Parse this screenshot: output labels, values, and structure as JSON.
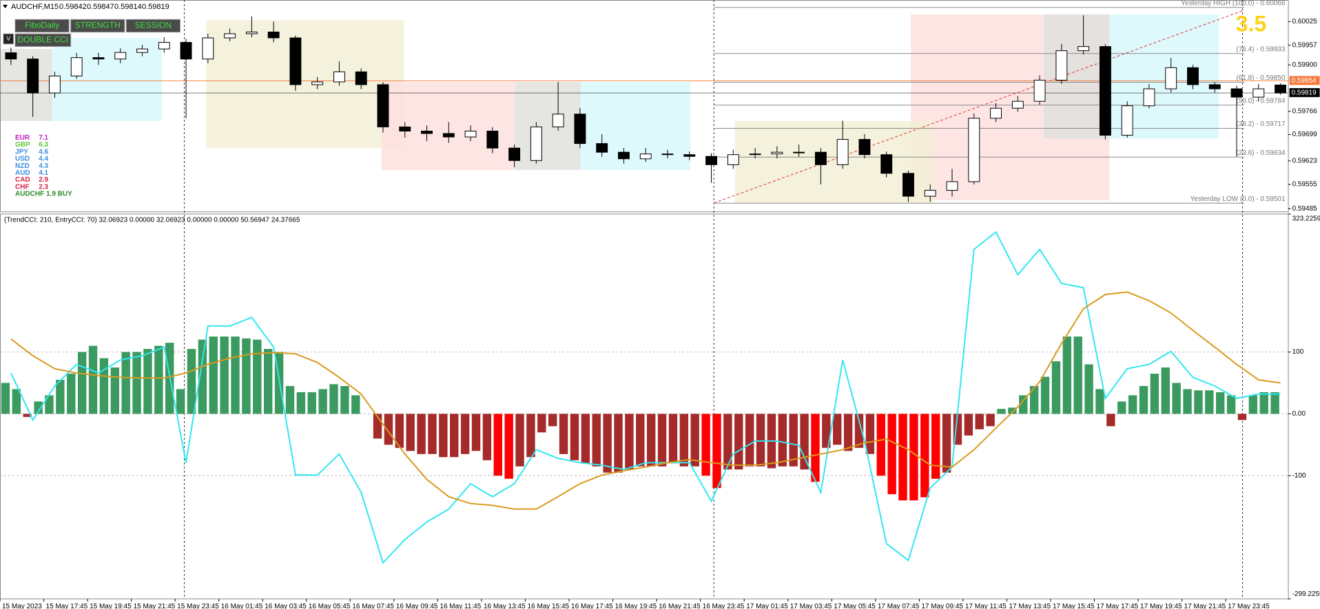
{
  "chart_data": [
    {
      "type": "candlestick",
      "title": "AUDCHF,M15",
      "open": [
        0.59935,
        0.59917,
        0.59819,
        0.59868,
        0.59921,
        0.59917,
        0.59936,
        0.59946,
        0.59965,
        0.59917,
        0.59978,
        0.5999,
        0.59995,
        0.59978,
        0.59843,
        0.59851,
        0.5988,
        0.59843,
        0.59721,
        0.59709,
        0.59702,
        0.59692,
        0.59709,
        0.5966,
        0.59624,
        0.59721,
        0.59758,
        0.59673,
        0.59648,
        0.59629,
        0.59643,
        0.59641,
        0.59636,
        0.59612,
        0.59641,
        0.59643,
        0.59648,
        0.59648,
        0.59612,
        0.59685,
        0.59641,
        0.59587,
        0.59521,
        0.59538,
        0.59563,
        0.59746,
        0.59775,
        0.59795,
        0.59856,
        0.59941,
        0.59953,
        0.59697,
        0.59782,
        0.59831,
        0.59892,
        0.59843,
        0.59831,
        0.59807,
        0.59842
      ],
      "high": [
        0.5995,
        0.59925,
        0.5988,
        0.59935,
        0.59935,
        0.59948,
        0.59958,
        0.5998,
        0.59975,
        0.5999,
        0.60005,
        0.6004,
        0.60025,
        0.59985,
        0.59865,
        0.5991,
        0.5989,
        0.5985,
        0.59735,
        0.59725,
        0.59735,
        0.59725,
        0.5972,
        0.5967,
        0.59735,
        0.59851,
        0.59775,
        0.597,
        0.5966,
        0.5966,
        0.59655,
        0.5965,
        0.59645,
        0.59655,
        0.5966,
        0.59665,
        0.5967,
        0.5966,
        0.59739,
        0.597,
        0.5965,
        0.59595,
        0.59555,
        0.596,
        0.5976,
        0.5979,
        0.5981,
        0.5987,
        0.5996,
        0.60043,
        0.5996,
        0.59795,
        0.59845,
        0.5992,
        0.599,
        0.5985,
        0.5984,
        0.59845,
        0.59847
      ],
      "low": [
        0.599,
        0.5975,
        0.59805,
        0.5986,
        0.599,
        0.59905,
        0.59925,
        0.59935,
        0.59746,
        0.59905,
        0.59968,
        0.5998,
        0.59965,
        0.59825,
        0.5983,
        0.5984,
        0.5983,
        0.59705,
        0.5969,
        0.5968,
        0.59675,
        0.5968,
        0.59645,
        0.59605,
        0.59615,
        0.5971,
        0.5966,
        0.59635,
        0.59615,
        0.5962,
        0.5963,
        0.59625,
        0.5956,
        0.596,
        0.5963,
        0.5963,
        0.59635,
        0.59555,
        0.596,
        0.5963,
        0.59575,
        0.59505,
        0.59505,
        0.5952,
        0.59555,
        0.59735,
        0.59765,
        0.59785,
        0.59845,
        0.5993,
        0.59685,
        0.5969,
        0.59775,
        0.5982,
        0.5983,
        0.5982,
        0.59636,
        0.59795,
        0.59814
      ],
      "close": [
        0.59917,
        0.59819,
        0.59868,
        0.59921,
        0.59917,
        0.59936,
        0.59946,
        0.59965,
        0.59917,
        0.59978,
        0.5999,
        0.59995,
        0.59978,
        0.59843,
        0.59851,
        0.5988,
        0.59843,
        0.59721,
        0.59709,
        0.59702,
        0.59692,
        0.59709,
        0.5966,
        0.59624,
        0.59721,
        0.59758,
        0.59673,
        0.59648,
        0.59629,
        0.59643,
        0.59641,
        0.59636,
        0.59612,
        0.59641,
        0.59643,
        0.59648,
        0.59648,
        0.59612,
        0.59685,
        0.59641,
        0.59587,
        0.59521,
        0.59538,
        0.59563,
        0.59746,
        0.59775,
        0.59795,
        0.59856,
        0.59941,
        0.59953,
        0.59697,
        0.59782,
        0.59831,
        0.59892,
        0.59843,
        0.59831,
        0.59807,
        0.59831,
        0.59819
      ],
      "up_color": "#ffffff",
      "down_color": "#000000",
      "ylim": [
        0.59477,
        0.6008
      ],
      "yticks": [
        0.60025,
        0.59957,
        {
          "value": 0.599,
          "label": "0.59900"
        },
        0.59766,
        0.59699,
        0.59623,
        0.59555,
        0.59485
      ],
      "xticks": [
        {
          "value": -0.5,
          "label": "15 May 2023"
        },
        {
          "value": 1.5,
          "label": "15 May 17:45"
        },
        {
          "value": 3.5,
          "label": "15 May 19:45"
        },
        {
          "value": 5.5,
          "label": "15 May 21:45"
        },
        {
          "value": 7.5,
          "label": "15 May 23:45"
        },
        {
          "value": 9.5,
          "label": "16 May 01:45"
        },
        {
          "value": 11.5,
          "label": "16 May 03:45"
        },
        {
          "value": 13.5,
          "label": "16 May 05:45"
        },
        {
          "value": 15.5,
          "label": "16 May 07:45"
        },
        {
          "value": 17.5,
          "label": "16 May 09:45"
        },
        {
          "value": 19.5,
          "label": "16 May 11:45"
        },
        {
          "value": 21.5,
          "label": "16 May 13:45"
        },
        {
          "value": 23.5,
          "label": "16 May 15:45"
        },
        {
          "value": 25.5,
          "label": "16 May 17:45"
        },
        {
          "value": 27.5,
          "label": "16 May 19:45"
        },
        {
          "value": 29.5,
          "label": "16 May 21:45"
        },
        {
          "value": 31.5,
          "label": "16 May 23:45"
        },
        {
          "value": 33.5,
          "label": "17 May 01:45"
        },
        {
          "value": 35.5,
          "label": "17 May 03:45"
        },
        {
          "value": 37.5,
          "label": "17 May 05:45"
        },
        {
          "value": 39.5,
          "label": "17 May 07:45"
        },
        {
          "value": 41.5,
          "label": "17 May 09:45"
        },
        {
          "value": 43.5,
          "label": "17 May 11:45"
        },
        {
          "value": 45.5,
          "label": "17 May 13:45"
        },
        {
          "value": 47.5,
          "label": "17 May 15:45"
        },
        {
          "value": 49.5,
          "label": "17 May 17:45"
        },
        {
          "value": 51.5,
          "label": "17 May 19:45"
        },
        {
          "value": 53.5,
          "label": "17 May 21:45"
        },
        {
          "value": 55.5,
          "label": "17 May 23:45"
        }
      ],
      "fib_levels": [
        {
          "value": 0.60066,
          "label": "Yesterday HIGH (100.0) - 0.60066"
        },
        {
          "value": 0.59933,
          "label": "(76.4) - 0.59933"
        },
        {
          "value": 0.5985,
          "label": "(61.8) - 0.59850"
        },
        {
          "value": 0.59784,
          "label": "(50.0) - 0.59784"
        },
        {
          "value": 0.59717,
          "label": "(38.2) - 0.59717"
        },
        {
          "value": 0.59634,
          "label": "(23.6) - 0.59634"
        },
        {
          "value": 0.59501,
          "label": "Yesterday LOW (0.0) - 0.59501"
        }
      ],
      "markers": [
        {
          "value": 0.59854,
          "color": "#f47a3c"
        },
        {
          "value": 0.59819,
          "color": "#000000"
        }
      ],
      "annotation": "3.5"
    },
    {
      "type": "cci",
      "title": "(TrendCCI: 210, EntryCCI: 70)  32.06923 0.00000 32.06923 0.00000 0.00000 50.56947 24.37665",
      "ylim": [
        -299.2255,
        323.22591
      ],
      "yticks": [
        323.22591,
        100,
        {
          "value": 0,
          "label": "0.00"
        },
        -100,
        -299.2255
      ],
      "grid": true,
      "series": [
        {
          "kind": "histogram",
          "color": "#3a9a60",
          "down_color": "#a52a2a",
          "strong_color": "#ff0000",
          "values": [
            50,
            40,
            -5,
            20,
            30,
            55,
            65,
            100,
            110,
            90,
            75,
            100,
            100,
            105,
            110,
            115,
            40,
            105,
            120,
            125,
            125,
            125,
            122,
            120,
            105,
            100,
            45,
            35,
            35,
            40,
            48,
            45,
            30,
            0,
            -40,
            -50,
            -55,
            -60,
            -65,
            -65,
            -70,
            -70,
            -65,
            -60,
            -75,
            -100,
            -105,
            -85,
            -70,
            -30,
            -20,
            -65,
            -75,
            -80,
            -85,
            -95,
            -95,
            -90,
            -85,
            -85,
            -85,
            -80,
            -85,
            -85,
            -100,
            -120,
            -90,
            -90,
            -85,
            -85,
            -88,
            -85,
            -85,
            -90,
            -110,
            -55,
            -50,
            -60,
            -55,
            -65,
            -100,
            -130,
            -140,
            -140,
            -135,
            -105,
            -95,
            -50,
            -35,
            -25,
            -20,
            8,
            10,
            30,
            45,
            60,
            85,
            125,
            125,
            80,
            40,
            -20,
            20,
            30,
            45,
            65,
            75,
            50,
            40,
            38,
            38,
            35,
            30,
            -10,
            30,
            35,
            35
          ]
        },
        {
          "kind": "line",
          "color": "#33e6f0",
          "values": [
            66,
            -10,
            45,
            80,
            66,
            87,
            94,
            108,
            -79,
            142,
            142,
            156,
            108,
            -99,
            -99,
            -65,
            -127,
            -241,
            -203,
            -175,
            -154,
            -113,
            -134,
            -113,
            -58,
            -72,
            -79,
            -83,
            -90,
            -79,
            -79,
            -79,
            -141,
            -65,
            -44,
            -44,
            -51,
            -127,
            87,
            -44,
            -210,
            -237,
            -120,
            -86,
            266,
            294,
            225,
            266,
            211,
            204,
            25,
            73,
            80,
            101,
            59,
            45,
            25,
            32,
            32
          ]
        },
        {
          "kind": "line",
          "color": "#d99a1e",
          "values": [
            121,
            94,
            73,
            66,
            62,
            59,
            58,
            58,
            66,
            80,
            90,
            97,
            99,
            97,
            83,
            59,
            32,
            -17,
            -65,
            -106,
            -134,
            -145,
            -148,
            -154,
            -154,
            -134,
            -113,
            -99,
            -92,
            -86,
            -79,
            -74,
            -79,
            -83,
            -83,
            -79,
            -72,
            -65,
            -58,
            -47,
            -41,
            -58,
            -83,
            -86,
            -58,
            -23,
            11,
            52,
            114,
            170,
            193,
            197,
            183,
            163,
            135,
            108,
            80,
            55,
            50
          ]
        }
      ]
    }
  ],
  "overlay": {
    "buttons": [
      "FiboDaily",
      "STRENGTH",
      "SESSION",
      "DOUBLE CCI",
      "V"
    ],
    "strength": [
      {
        "currency": "EUR",
        "value": 7.1,
        "color": "#c21fc2"
      },
      {
        "currency": "GBP",
        "value": 6.3,
        "color": "#5fc83a"
      },
      {
        "currency": "JPY",
        "value": 4.6,
        "color": "#3a8ee0"
      },
      {
        "currency": "USD",
        "value": 4.4,
        "color": "#3a8ee0"
      },
      {
        "currency": "NZD",
        "value": 4.3,
        "color": "#3a8ee0"
      },
      {
        "currency": "AUD",
        "value": 4.1,
        "color": "#3a8ee0"
      },
      {
        "currency": "CAD",
        "value": 2.9,
        "color": "#d92346"
      },
      {
        "currency": "CHF",
        "value": 2.3,
        "color": "#d92346"
      }
    ],
    "signal": {
      "text": "AUDCHF 1.9 BUY",
      "color": "#2a8a2a"
    }
  }
}
